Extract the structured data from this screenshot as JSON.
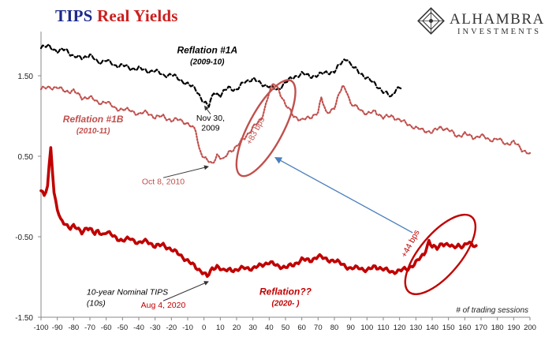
{
  "header": {
    "title_part1": "TIPS",
    "title_part2": "Real Yields",
    "brand": "ALHAMBRA",
    "brand_sub": "INVESTMENTS"
  },
  "chart_data": {
    "type": "line",
    "xlabel": "# of trading sessions",
    "ylabel": "",
    "xlim": [
      -100,
      200
    ],
    "ylim": [
      -1.5,
      2.0
    ],
    "xticks": [
      -100,
      -90,
      -80,
      -70,
      -60,
      -50,
      -40,
      -30,
      -20,
      -10,
      0,
      10,
      20,
      30,
      40,
      50,
      60,
      70,
      80,
      90,
      100,
      110,
      120,
      130,
      140,
      150,
      160,
      170,
      180,
      190,
      200
    ],
    "yticks": [
      -1.5,
      -0.5,
      0.5,
      1.5
    ],
    "ytick_labels": [
      "-1.50",
      "-0.50",
      "0.50",
      "1.50"
    ],
    "colors": {
      "reflation_1a": "#000000",
      "reflation_1b": "#c0504d",
      "reflation_current": "#c00000",
      "arrow": "#4a7ebb"
    },
    "series": [
      {
        "name": "Reflation #1A",
        "style": "dashed",
        "keypoints": [
          [
            -100,
            1.85
          ],
          [
            -95,
            1.87
          ],
          [
            -90,
            1.8
          ],
          [
            -85,
            1.83
          ],
          [
            -80,
            1.74
          ],
          [
            -75,
            1.72
          ],
          [
            -70,
            1.76
          ],
          [
            -65,
            1.66
          ],
          [
            -60,
            1.7
          ],
          [
            -55,
            1.62
          ],
          [
            -50,
            1.64
          ],
          [
            -45,
            1.58
          ],
          [
            -40,
            1.6
          ],
          [
            -35,
            1.55
          ],
          [
            -30,
            1.57
          ],
          [
            -25,
            1.5
          ],
          [
            -20,
            1.52
          ],
          [
            -15,
            1.45
          ],
          [
            -10,
            1.4
          ],
          [
            -5,
            1.33
          ],
          [
            0,
            1.17
          ],
          [
            3,
            1.12
          ],
          [
            6,
            1.3
          ],
          [
            10,
            1.25
          ],
          [
            15,
            1.36
          ],
          [
            20,
            1.32
          ],
          [
            25,
            1.43
          ],
          [
            30,
            1.46
          ],
          [
            35,
            1.4
          ],
          [
            40,
            1.37
          ],
          [
            45,
            1.32
          ],
          [
            50,
            1.42
          ],
          [
            55,
            1.48
          ],
          [
            60,
            1.53
          ],
          [
            65,
            1.49
          ],
          [
            70,
            1.51
          ],
          [
            75,
            1.54
          ],
          [
            80,
            1.55
          ],
          [
            85,
            1.68
          ],
          [
            88,
            1.72
          ],
          [
            90,
            1.63
          ],
          [
            95,
            1.55
          ],
          [
            100,
            1.47
          ],
          [
            105,
            1.4
          ],
          [
            110,
            1.3
          ],
          [
            115,
            1.24
          ],
          [
            118,
            1.35
          ],
          [
            121,
            1.34
          ]
        ]
      },
      {
        "name": "Reflation #1B",
        "style": "dotted",
        "keypoints": [
          [
            -100,
            1.34
          ],
          [
            -90,
            1.36
          ],
          [
            -85,
            1.3
          ],
          [
            -80,
            1.32
          ],
          [
            -75,
            1.22
          ],
          [
            -70,
            1.24
          ],
          [
            -65,
            1.16
          ],
          [
            -60,
            1.18
          ],
          [
            -55,
            1.1
          ],
          [
            -50,
            1.08
          ],
          [
            -45,
            1.07
          ],
          [
            -40,
            1.02
          ],
          [
            -35,
            1.05
          ],
          [
            -30,
            0.98
          ],
          [
            -25,
            1.0
          ],
          [
            -20,
            0.94
          ],
          [
            -15,
            0.96
          ],
          [
            -10,
            0.9
          ],
          [
            -5,
            0.82
          ],
          [
            -3,
            0.6
          ],
          [
            0,
            0.48
          ],
          [
            5,
            0.4
          ],
          [
            8,
            0.52
          ],
          [
            12,
            0.45
          ],
          [
            15,
            0.55
          ],
          [
            20,
            0.62
          ],
          [
            25,
            0.73
          ],
          [
            30,
            0.86
          ],
          [
            35,
            0.95
          ],
          [
            38,
            1.15
          ],
          [
            40,
            1.3
          ],
          [
            43,
            1.4
          ],
          [
            46,
            1.32
          ],
          [
            50,
            1.14
          ],
          [
            55,
            1.0
          ],
          [
            60,
            0.95
          ],
          [
            65,
            0.98
          ],
          [
            70,
            1.05
          ],
          [
            72,
            1.22
          ],
          [
            75,
            1.04
          ],
          [
            80,
            1.1
          ],
          [
            85,
            1.38
          ],
          [
            88,
            1.3
          ],
          [
            90,
            1.14
          ],
          [
            95,
            1.1
          ],
          [
            100,
            1.02
          ],
          [
            105,
            1.06
          ],
          [
            110,
            0.98
          ],
          [
            115,
            1.0
          ],
          [
            120,
            0.95
          ],
          [
            125,
            0.9
          ],
          [
            130,
            0.85
          ],
          [
            135,
            0.82
          ],
          [
            140,
            0.8
          ],
          [
            145,
            0.86
          ],
          [
            150,
            0.83
          ],
          [
            155,
            0.75
          ],
          [
            160,
            0.78
          ],
          [
            165,
            0.73
          ],
          [
            170,
            0.76
          ],
          [
            175,
            0.7
          ],
          [
            180,
            0.72
          ],
          [
            185,
            0.65
          ],
          [
            190,
            0.68
          ],
          [
            195,
            0.58
          ],
          [
            200,
            0.54
          ]
        ]
      },
      {
        "name": "10-year Nominal TIPS",
        "style": "solid",
        "keypoints": [
          [
            -100,
            0.08
          ],
          [
            -98,
            0.0
          ],
          [
            -96,
            0.12
          ],
          [
            -94,
            0.62
          ],
          [
            -92,
            0.05
          ],
          [
            -90,
            -0.15
          ],
          [
            -88,
            -0.3
          ],
          [
            -85,
            -0.35
          ],
          [
            -82,
            -0.38
          ],
          [
            -80,
            -0.36
          ],
          [
            -77,
            -0.42
          ],
          [
            -75,
            -0.45
          ],
          [
            -72,
            -0.38
          ],
          [
            -70,
            -0.4
          ],
          [
            -67,
            -0.47
          ],
          [
            -65,
            -0.43
          ],
          [
            -62,
            -0.47
          ],
          [
            -60,
            -0.44
          ],
          [
            -55,
            -0.5
          ],
          [
            -50,
            -0.55
          ],
          [
            -45,
            -0.52
          ],
          [
            -40,
            -0.58
          ],
          [
            -35,
            -0.55
          ],
          [
            -30,
            -0.62
          ],
          [
            -25,
            -0.6
          ],
          [
            -20,
            -0.66
          ],
          [
            -15,
            -0.72
          ],
          [
            -10,
            -0.8
          ],
          [
            -5,
            -0.88
          ],
          [
            0,
            -0.95
          ],
          [
            2,
            -1.0
          ],
          [
            5,
            -0.9
          ],
          [
            8,
            -0.86
          ],
          [
            12,
            -0.93
          ],
          [
            16,
            -0.9
          ],
          [
            20,
            -0.92
          ],
          [
            25,
            -0.88
          ],
          [
            30,
            -0.9
          ],
          [
            35,
            -0.85
          ],
          [
            40,
            -0.82
          ],
          [
            45,
            -0.86
          ],
          [
            50,
            -0.88
          ],
          [
            55,
            -0.85
          ],
          [
            60,
            -0.78
          ],
          [
            65,
            -0.8
          ],
          [
            70,
            -0.74
          ],
          [
            75,
            -0.78
          ],
          [
            80,
            -0.8
          ],
          [
            85,
            -0.84
          ],
          [
            90,
            -0.9
          ],
          [
            95,
            -0.88
          ],
          [
            100,
            -0.92
          ],
          [
            105,
            -0.87
          ],
          [
            110,
            -0.9
          ],
          [
            115,
            -0.94
          ],
          [
            120,
            -0.92
          ],
          [
            125,
            -0.9
          ],
          [
            130,
            -0.82
          ],
          [
            135,
            -0.72
          ],
          [
            138,
            -0.55
          ],
          [
            140,
            -0.62
          ],
          [
            143,
            -0.65
          ],
          [
            146,
            -0.58
          ],
          [
            150,
            -0.6
          ],
          [
            153,
            -0.64
          ],
          [
            156,
            -0.6
          ],
          [
            159,
            -0.62
          ],
          [
            162,
            -0.58
          ],
          [
            165,
            -0.6
          ],
          [
            167,
            -0.61
          ]
        ]
      }
    ],
    "annotations": [
      {
        "id": "label_1a",
        "lines": [
          "Reflation #1A",
          "(2009-10)"
        ],
        "x": 2,
        "y": 1.78,
        "color": "#000000",
        "italic": true
      },
      {
        "id": "label_1b",
        "lines": [
          "Reflation #1B",
          "(2010-11)"
        ],
        "x": -68,
        "y": 0.92,
        "color": "#c0504d",
        "italic": true
      },
      {
        "id": "label_now",
        "lines": [
          "Reflation??",
          "(2020- )"
        ],
        "x": 50,
        "y": -1.22,
        "color": "#c00000",
        "italic": true
      },
      {
        "id": "label_nov",
        "lines": [
          "Nov 30,",
          "2009"
        ],
        "x": 4,
        "y": 0.94,
        "color": "#000000",
        "italic": false,
        "arrow_to": [
          0,
          1.17
        ]
      },
      {
        "id": "label_oct",
        "lines": [
          "Oct 8, 2010"
        ],
        "x": -25,
        "y": 0.15,
        "color": "#c0504d",
        "italic": false,
        "arrow_to": [
          2,
          0.42
        ]
      },
      {
        "id": "label_aug",
        "lines": [
          "Aug 4, 2020"
        ],
        "x": -25,
        "y": -1.38,
        "color": "#c00000",
        "italic": false,
        "arrow_to": [
          2,
          -1.01
        ]
      },
      {
        "id": "label_83",
        "lines": [
          "+83 bps"
        ],
        "x": 33,
        "y": 0.8,
        "color": "#c0504d",
        "italic": false,
        "rotate": -62
      },
      {
        "id": "label_44",
        "lines": [
          "+44 bps"
        ],
        "x": 128,
        "y": -0.6,
        "color": "#c00000",
        "italic": false,
        "rotate": -62
      },
      {
        "id": "label_tips",
        "lines": [
          "10-year Nominal TIPS",
          "(10s)"
        ],
        "x": -72,
        "y": -1.22,
        "color": "#000000",
        "italic": true
      }
    ]
  }
}
